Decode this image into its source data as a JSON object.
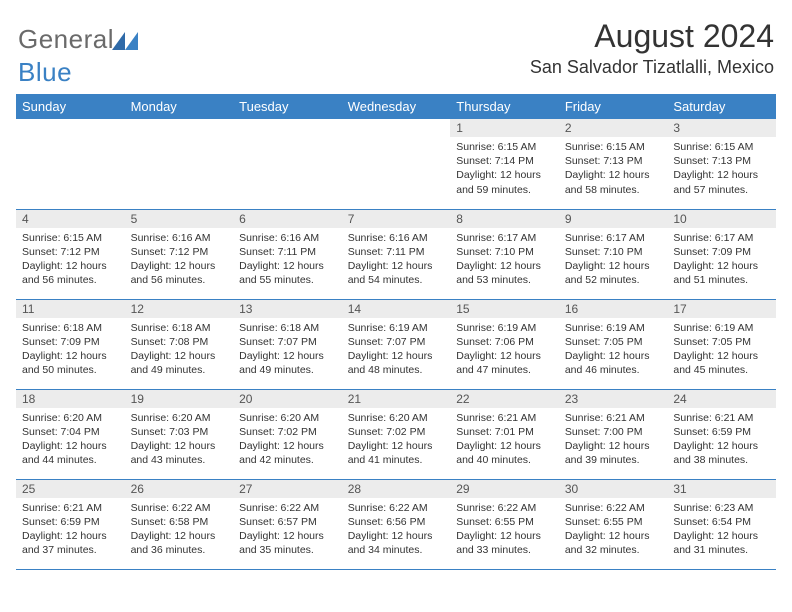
{
  "logo": {
    "name": "General",
    "accent": "Blue"
  },
  "title": "August 2024",
  "location": "San Salvador Tizatlalli, Mexico",
  "colors": {
    "header_bg": "#3a81c4",
    "header_text": "#ffffff",
    "daynum_bg": "#ececec",
    "border": "#3a81c4",
    "page_bg": "#ffffff",
    "text": "#333333"
  },
  "weekdays": [
    "Sunday",
    "Monday",
    "Tuesday",
    "Wednesday",
    "Thursday",
    "Friday",
    "Saturday"
  ],
  "weeks": [
    [
      {
        "day": "",
        "sunrise": "",
        "sunset": "",
        "daylight": ""
      },
      {
        "day": "",
        "sunrise": "",
        "sunset": "",
        "daylight": ""
      },
      {
        "day": "",
        "sunrise": "",
        "sunset": "",
        "daylight": ""
      },
      {
        "day": "",
        "sunrise": "",
        "sunset": "",
        "daylight": ""
      },
      {
        "day": "1",
        "sunrise": "Sunrise: 6:15 AM",
        "sunset": "Sunset: 7:14 PM",
        "daylight": "Daylight: 12 hours and 59 minutes."
      },
      {
        "day": "2",
        "sunrise": "Sunrise: 6:15 AM",
        "sunset": "Sunset: 7:13 PM",
        "daylight": "Daylight: 12 hours and 58 minutes."
      },
      {
        "day": "3",
        "sunrise": "Sunrise: 6:15 AM",
        "sunset": "Sunset: 7:13 PM",
        "daylight": "Daylight: 12 hours and 57 minutes."
      }
    ],
    [
      {
        "day": "4",
        "sunrise": "Sunrise: 6:15 AM",
        "sunset": "Sunset: 7:12 PM",
        "daylight": "Daylight: 12 hours and 56 minutes."
      },
      {
        "day": "5",
        "sunrise": "Sunrise: 6:16 AM",
        "sunset": "Sunset: 7:12 PM",
        "daylight": "Daylight: 12 hours and 56 minutes."
      },
      {
        "day": "6",
        "sunrise": "Sunrise: 6:16 AM",
        "sunset": "Sunset: 7:11 PM",
        "daylight": "Daylight: 12 hours and 55 minutes."
      },
      {
        "day": "7",
        "sunrise": "Sunrise: 6:16 AM",
        "sunset": "Sunset: 7:11 PM",
        "daylight": "Daylight: 12 hours and 54 minutes."
      },
      {
        "day": "8",
        "sunrise": "Sunrise: 6:17 AM",
        "sunset": "Sunset: 7:10 PM",
        "daylight": "Daylight: 12 hours and 53 minutes."
      },
      {
        "day": "9",
        "sunrise": "Sunrise: 6:17 AM",
        "sunset": "Sunset: 7:10 PM",
        "daylight": "Daylight: 12 hours and 52 minutes."
      },
      {
        "day": "10",
        "sunrise": "Sunrise: 6:17 AM",
        "sunset": "Sunset: 7:09 PM",
        "daylight": "Daylight: 12 hours and 51 minutes."
      }
    ],
    [
      {
        "day": "11",
        "sunrise": "Sunrise: 6:18 AM",
        "sunset": "Sunset: 7:09 PM",
        "daylight": "Daylight: 12 hours and 50 minutes."
      },
      {
        "day": "12",
        "sunrise": "Sunrise: 6:18 AM",
        "sunset": "Sunset: 7:08 PM",
        "daylight": "Daylight: 12 hours and 49 minutes."
      },
      {
        "day": "13",
        "sunrise": "Sunrise: 6:18 AM",
        "sunset": "Sunset: 7:07 PM",
        "daylight": "Daylight: 12 hours and 49 minutes."
      },
      {
        "day": "14",
        "sunrise": "Sunrise: 6:19 AM",
        "sunset": "Sunset: 7:07 PM",
        "daylight": "Daylight: 12 hours and 48 minutes."
      },
      {
        "day": "15",
        "sunrise": "Sunrise: 6:19 AM",
        "sunset": "Sunset: 7:06 PM",
        "daylight": "Daylight: 12 hours and 47 minutes."
      },
      {
        "day": "16",
        "sunrise": "Sunrise: 6:19 AM",
        "sunset": "Sunset: 7:05 PM",
        "daylight": "Daylight: 12 hours and 46 minutes."
      },
      {
        "day": "17",
        "sunrise": "Sunrise: 6:19 AM",
        "sunset": "Sunset: 7:05 PM",
        "daylight": "Daylight: 12 hours and 45 minutes."
      }
    ],
    [
      {
        "day": "18",
        "sunrise": "Sunrise: 6:20 AM",
        "sunset": "Sunset: 7:04 PM",
        "daylight": "Daylight: 12 hours and 44 minutes."
      },
      {
        "day": "19",
        "sunrise": "Sunrise: 6:20 AM",
        "sunset": "Sunset: 7:03 PM",
        "daylight": "Daylight: 12 hours and 43 minutes."
      },
      {
        "day": "20",
        "sunrise": "Sunrise: 6:20 AM",
        "sunset": "Sunset: 7:02 PM",
        "daylight": "Daylight: 12 hours and 42 minutes."
      },
      {
        "day": "21",
        "sunrise": "Sunrise: 6:20 AM",
        "sunset": "Sunset: 7:02 PM",
        "daylight": "Daylight: 12 hours and 41 minutes."
      },
      {
        "day": "22",
        "sunrise": "Sunrise: 6:21 AM",
        "sunset": "Sunset: 7:01 PM",
        "daylight": "Daylight: 12 hours and 40 minutes."
      },
      {
        "day": "23",
        "sunrise": "Sunrise: 6:21 AM",
        "sunset": "Sunset: 7:00 PM",
        "daylight": "Daylight: 12 hours and 39 minutes."
      },
      {
        "day": "24",
        "sunrise": "Sunrise: 6:21 AM",
        "sunset": "Sunset: 6:59 PM",
        "daylight": "Daylight: 12 hours and 38 minutes."
      }
    ],
    [
      {
        "day": "25",
        "sunrise": "Sunrise: 6:21 AM",
        "sunset": "Sunset: 6:59 PM",
        "daylight": "Daylight: 12 hours and 37 minutes."
      },
      {
        "day": "26",
        "sunrise": "Sunrise: 6:22 AM",
        "sunset": "Sunset: 6:58 PM",
        "daylight": "Daylight: 12 hours and 36 minutes."
      },
      {
        "day": "27",
        "sunrise": "Sunrise: 6:22 AM",
        "sunset": "Sunset: 6:57 PM",
        "daylight": "Daylight: 12 hours and 35 minutes."
      },
      {
        "day": "28",
        "sunrise": "Sunrise: 6:22 AM",
        "sunset": "Sunset: 6:56 PM",
        "daylight": "Daylight: 12 hours and 34 minutes."
      },
      {
        "day": "29",
        "sunrise": "Sunrise: 6:22 AM",
        "sunset": "Sunset: 6:55 PM",
        "daylight": "Daylight: 12 hours and 33 minutes."
      },
      {
        "day": "30",
        "sunrise": "Sunrise: 6:22 AM",
        "sunset": "Sunset: 6:55 PM",
        "daylight": "Daylight: 12 hours and 32 minutes."
      },
      {
        "day": "31",
        "sunrise": "Sunrise: 6:23 AM",
        "sunset": "Sunset: 6:54 PM",
        "daylight": "Daylight: 12 hours and 31 minutes."
      }
    ]
  ]
}
